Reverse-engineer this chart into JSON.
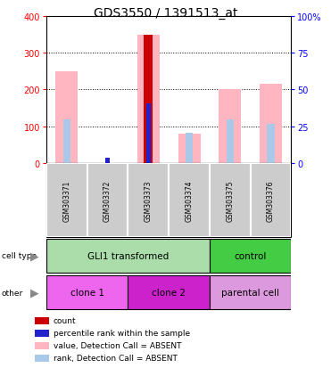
{
  "title": "GDS3550 / 1391513_at",
  "samples": [
    "GSM303371",
    "GSM303372",
    "GSM303373",
    "GSM303374",
    "GSM303375",
    "GSM303376"
  ],
  "count_values": [
    0,
    0,
    348,
    0,
    0,
    0
  ],
  "value_absent": [
    250,
    0,
    348,
    80,
    200,
    215
  ],
  "rank_absent": [
    120,
    0,
    163,
    82,
    118,
    107
  ],
  "percentile_rank": [
    0,
    15,
    163,
    0,
    0,
    0
  ],
  "ylim": [
    0,
    400
  ],
  "y_ticks_left": [
    0,
    100,
    200,
    300,
    400
  ],
  "y_ticks_right": [
    0,
    25,
    50,
    75,
    100
  ],
  "dotted_lines": [
    100,
    200,
    300
  ],
  "cell_type_groups": [
    {
      "label": "GLI1 transformed",
      "start": 0,
      "end": 4,
      "color": "#aaddaa"
    },
    {
      "label": "control",
      "start": 4,
      "end": 6,
      "color": "#44cc44"
    }
  ],
  "other_groups": [
    {
      "label": "clone 1",
      "start": 0,
      "end": 2,
      "color": "#ee66ee"
    },
    {
      "label": "clone 2",
      "start": 2,
      "end": 4,
      "color": "#cc22cc"
    },
    {
      "label": "parental cell",
      "start": 4,
      "end": 6,
      "color": "#dd99dd"
    }
  ],
  "legend_items": [
    {
      "color": "#cc0000",
      "label": "count"
    },
    {
      "color": "#2222cc",
      "label": "percentile rank within the sample"
    },
    {
      "color": "#ffb6c1",
      "label": "value, Detection Call = ABSENT"
    },
    {
      "color": "#aac8e8",
      "label": "rank, Detection Call = ABSENT"
    }
  ],
  "color_count": "#cc0000",
  "color_percentile": "#2222cc",
  "color_value_absent": "#ffb6c1",
  "color_rank_absent": "#aac8e8",
  "color_bg_sample": "#cccccc",
  "title_fontsize": 10,
  "tick_fontsize": 7,
  "axis_label_fontsize": 7
}
